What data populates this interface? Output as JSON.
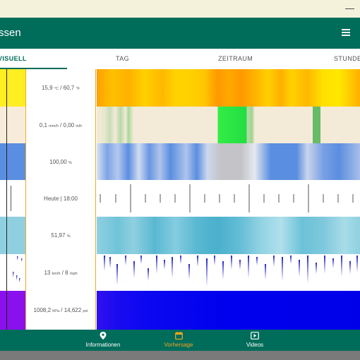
{
  "app": {
    "title": "ssen"
  },
  "tabs": [
    {
      "label": "VISUELL",
      "active": true
    },
    {
      "label": "TAG",
      "active": false
    },
    {
      "label": "ZEITRAUM",
      "active": false
    },
    {
      "label": "STUNDE",
      "active": false
    }
  ],
  "rows": [
    {
      "name": "temperature",
      "value": "15,9",
      "unit1": "°C",
      "sep": " / ",
      "value2": "60,7",
      "unit2": "°F"
    },
    {
      "name": "precipitation",
      "value": "0,1",
      "unit1": "mm/h",
      "sep": " / ",
      "value2": "0,00",
      "unit2": "in/h"
    },
    {
      "name": "cloud",
      "value": "100,00",
      "unit1": "%",
      "sep": "",
      "value2": "",
      "unit2": ""
    },
    {
      "name": "time",
      "value": "Heute | 18:00",
      "unit1": "",
      "sep": "",
      "value2": "",
      "unit2": ""
    },
    {
      "name": "humidity",
      "value": "51,97",
      "unit1": "%",
      "sep": "",
      "value2": "",
      "unit2": ""
    },
    {
      "name": "wind",
      "value": "13",
      "unit1": "km/h",
      "sep": " / ",
      "value2": "8",
      "unit2": "mph"
    },
    {
      "name": "pressure",
      "value": "1008,2",
      "unit1": "hPa",
      "sep": " / ",
      "value2": "14,622",
      "unit2": "psi"
    }
  ],
  "nav": [
    {
      "label": "Informationen",
      "icon": "location-pin-icon",
      "active": false
    },
    {
      "label": "Vorhersage",
      "icon": "calendar-icon",
      "active": true
    },
    {
      "label": "Videos",
      "icon": "video-icon",
      "active": false
    }
  ],
  "colors": {
    "primary": "#006c5a",
    "accent": "#f5a623",
    "titlebar": "#f5f2dc"
  }
}
